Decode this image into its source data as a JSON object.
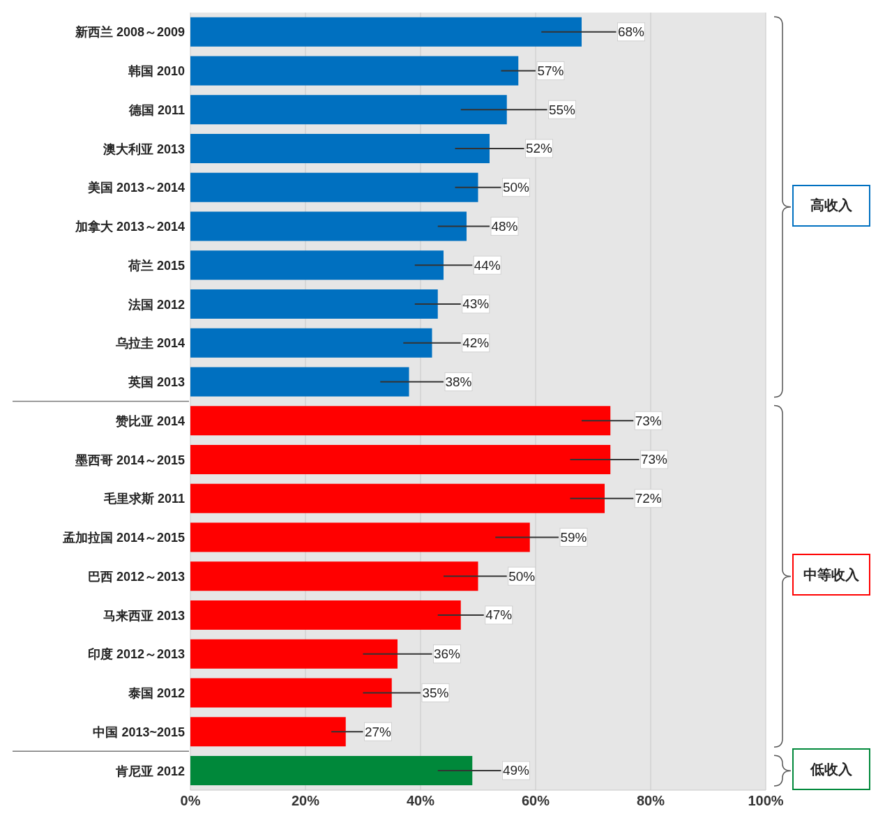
{
  "chart_data": {
    "type": "bar",
    "orientation": "horizontal",
    "categories": [
      "新西兰 2008～2009",
      "韩国 2010",
      "德国 2011",
      "澳大利亚 2013",
      "美国 2013～2014",
      "加拿大 2013～2014",
      "荷兰 2015",
      "法国 2012",
      "乌拉圭 2014",
      "英国 2013",
      "赞比亚 2014",
      "墨西哥 2014～2015",
      "毛里求斯 2011",
      "孟加拉国 2014～2015",
      "巴西 2012～2013",
      "马来西亚 2013",
      "印度 2012～2013",
      "泰国 2012",
      "中国 2013~2015",
      "肯尼亚 2012"
    ],
    "values": [
      68,
      57,
      55,
      52,
      50,
      48,
      44,
      43,
      42,
      38,
      73,
      73,
      72,
      59,
      50,
      47,
      36,
      35,
      27,
      49
    ],
    "value_labels": [
      "68%",
      "57%",
      "55%",
      "52%",
      "50%",
      "48%",
      "44%",
      "43%",
      "42%",
      "38%",
      "73%",
      "73%",
      "72%",
      "59%",
      "50%",
      "47%",
      "36%",
      "35%",
      "27%",
      "49%"
    ],
    "errors": [
      [
        61,
        74
      ],
      [
        54,
        60
      ],
      [
        47,
        62
      ],
      [
        46,
        58
      ],
      [
        46,
        54
      ],
      [
        43,
        52
      ],
      [
        39,
        49
      ],
      [
        39,
        47
      ],
      [
        37,
        47
      ],
      [
        33,
        44
      ],
      [
        68,
        77
      ],
      [
        66,
        78
      ],
      [
        66,
        77
      ],
      [
        53,
        64
      ],
      [
        44,
        55
      ],
      [
        43,
        51
      ],
      [
        30,
        42
      ],
      [
        30,
        40
      ],
      [
        24.5,
        30
      ],
      [
        43,
        54
      ]
    ],
    "colors": [
      "#0070c0",
      "#0070c0",
      "#0070c0",
      "#0070c0",
      "#0070c0",
      "#0070c0",
      "#0070c0",
      "#0070c0",
      "#0070c0",
      "#0070c0",
      "#ff0000",
      "#ff0000",
      "#ff0000",
      "#ff0000",
      "#ff0000",
      "#ff0000",
      "#ff0000",
      "#ff0000",
      "#ff0000",
      "#00883a"
    ],
    "xlim": [
      0,
      100
    ],
    "xticks": [
      {
        "value": 0,
        "label": "0%"
      },
      {
        "value": 20,
        "label": "20%"
      },
      {
        "value": 40,
        "label": "40%"
      },
      {
        "value": 60,
        "label": "60%"
      },
      {
        "value": 80,
        "label": "80%"
      },
      {
        "value": 100,
        "label": "100%"
      }
    ],
    "grid": "x",
    "annotations": [
      "高收入",
      "中等收入",
      "低收入"
    ]
  }
}
